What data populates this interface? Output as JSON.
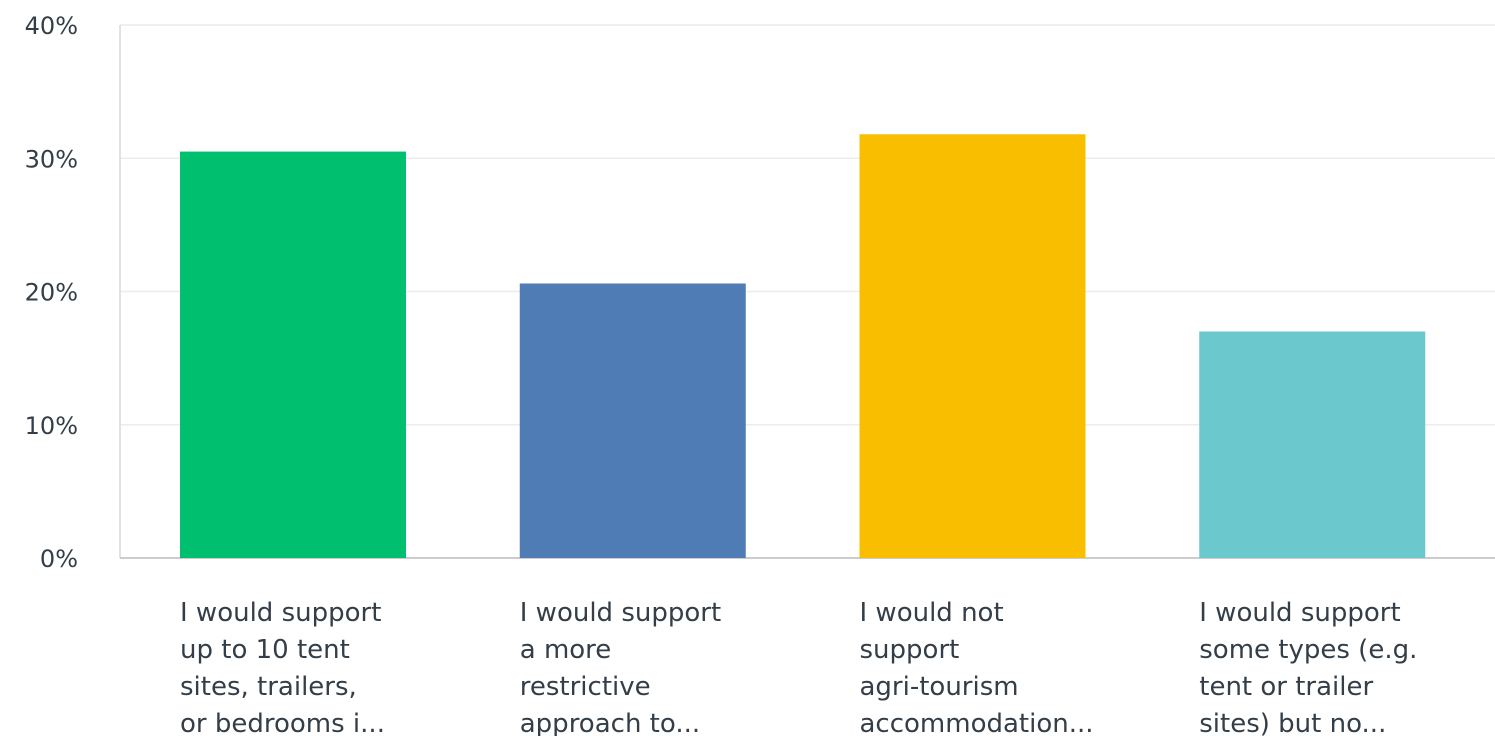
{
  "chart_data": {
    "type": "bar",
    "title": "",
    "xlabel": "",
    "ylabel": "",
    "ylim": [
      0,
      40
    ],
    "y_tick_values": [
      0,
      10,
      20,
      30,
      40
    ],
    "y_tick_labels": [
      "0%",
      "10%",
      "20%",
      "30%",
      "40%"
    ],
    "grid": true,
    "categories": [
      [
        "I would support",
        "up to 10 tent",
        "sites, trailers,",
        "or bedrooms i..."
      ],
      [
        "I would support",
        "a more",
        "restrictive",
        "approach to..."
      ],
      [
        "I would not",
        "support",
        "agri-tourism",
        "accommodation..."
      ],
      [
        "I would support",
        "some types (e.g.",
        "tent or trailer",
        "sites) but no..."
      ]
    ],
    "values": [
      30.5,
      20.6,
      31.8,
      17.0
    ],
    "colors": [
      "#00bf6f",
      "#507cb6",
      "#f9be00",
      "#6bc8cd"
    ]
  }
}
